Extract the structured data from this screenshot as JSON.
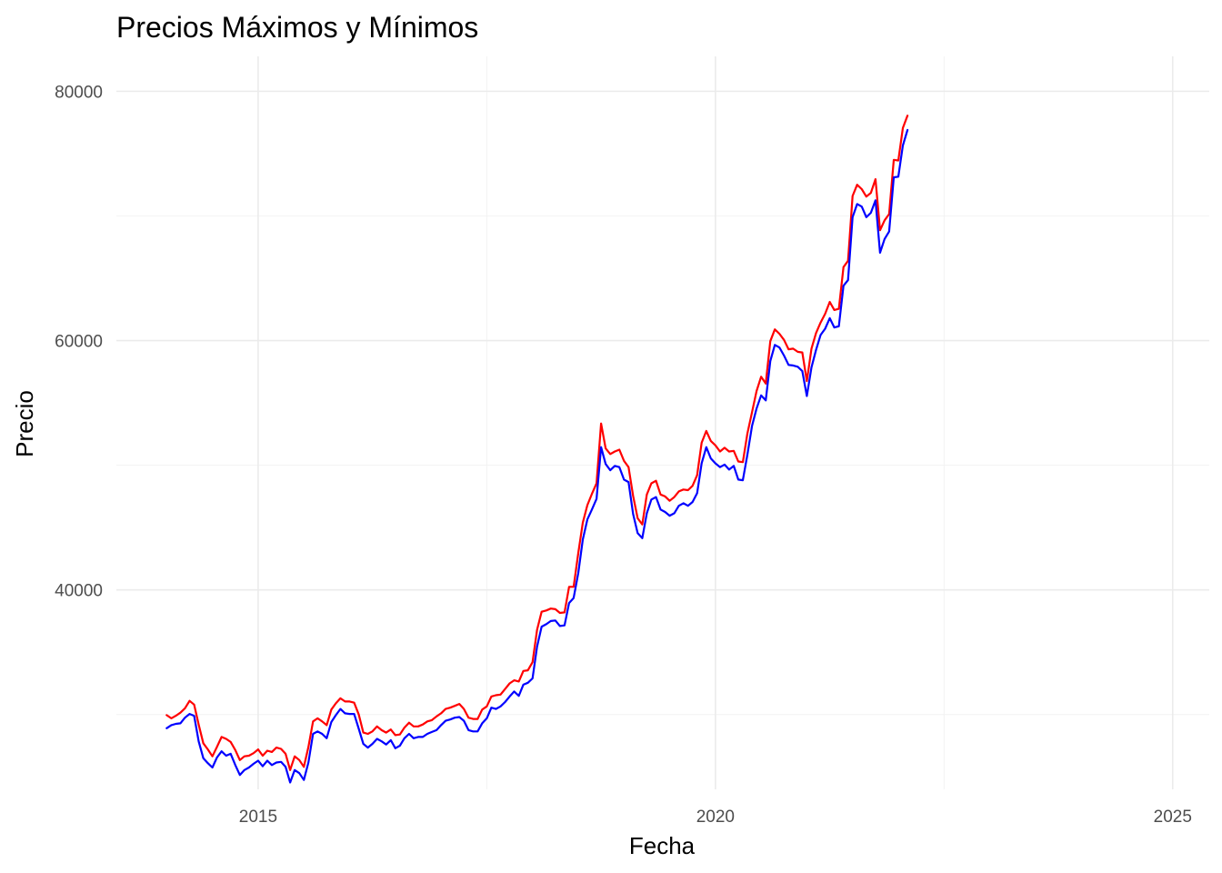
{
  "chart_data": {
    "type": "line",
    "title": "Precios Máximos y Mínimos",
    "xlabel": "Fecha",
    "ylabel": "Precio",
    "x_ticks": [
      {
        "label": "2015",
        "value": 2015
      },
      {
        "label": "2020",
        "value": 2020
      },
      {
        "label": "2025",
        "value": 2025
      }
    ],
    "y_ticks": [
      {
        "label": "40000",
        "value": 40000
      },
      {
        "label": "60000",
        "value": 60000
      },
      {
        "label": "80000",
        "value": 80000
      }
    ],
    "xlim": [
      2013.45,
      2025.4
    ],
    "ylim": [
      24000,
      82800
    ],
    "grid": true,
    "x_step": 0.05,
    "x_start": 2014.0,
    "series": [
      {
        "key": "high",
        "color": "#ff0000",
        "values": [
          29950,
          29700,
          29900,
          30150,
          30500,
          31100,
          30800,
          29200,
          27700,
          27200,
          26650,
          27400,
          28200,
          28050,
          27800,
          27150,
          26350,
          26650,
          26700,
          26900,
          27200,
          26700,
          27100,
          27000,
          27350,
          27250,
          26850,
          25550,
          26650,
          26350,
          25800,
          27400,
          29450,
          29700,
          29450,
          29150,
          30400,
          30900,
          31300,
          31050,
          31050,
          30950,
          30000,
          28550,
          28450,
          28650,
          29050,
          28750,
          28550,
          28800,
          28350,
          28400,
          28950,
          29350,
          29050,
          29050,
          29200,
          29450,
          29550,
          29850,
          30100,
          30450,
          30550,
          30700,
          30850,
          30450,
          29750,
          29650,
          29650,
          30400,
          30650,
          31450,
          31550,
          31600,
          32050,
          32500,
          32750,
          32650,
          33500,
          33550,
          34200,
          36800,
          38250,
          38350,
          38500,
          38450,
          38150,
          38200,
          40250,
          40250,
          42950,
          45400,
          46800,
          47700,
          48550,
          53350,
          51350,
          50900,
          51100,
          51250,
          50350,
          49850,
          47550,
          45750,
          45250,
          47650,
          48550,
          48750,
          47650,
          47500,
          47150,
          47450,
          47900,
          48050,
          48000,
          48350,
          49200,
          51800,
          52750,
          51950,
          51600,
          51100,
          51400,
          51100,
          51150,
          50300,
          50250,
          52550,
          54250,
          55950,
          57100,
          56550,
          59950,
          60900,
          60550,
          60050,
          59300,
          59350,
          59100,
          59050,
          56750,
          59350,
          60600,
          61450,
          62150,
          63100,
          62450,
          62550,
          65900,
          66400,
          71600,
          72500,
          72150,
          71550,
          71850,
          72950,
          68850,
          69650,
          70150,
          74500,
          74450,
          77050,
          78050
        ]
      },
      {
        "key": "low",
        "color": "#0000ff",
        "values": [
          28900,
          29150,
          29250,
          29300,
          29750,
          30050,
          29900,
          27850,
          26500,
          26100,
          25750,
          26550,
          27050,
          26700,
          26850,
          25950,
          25150,
          25550,
          25750,
          26050,
          26300,
          25850,
          26300,
          25950,
          26150,
          26200,
          25800,
          24550,
          25550,
          25300,
          24750,
          26150,
          28450,
          28650,
          28450,
          28100,
          29400,
          29950,
          30450,
          30100,
          30050,
          30050,
          28850,
          27650,
          27350,
          27650,
          28050,
          27850,
          27600,
          27950,
          27300,
          27500,
          28100,
          28450,
          28100,
          28200,
          28200,
          28450,
          28600,
          28750,
          29150,
          29500,
          29600,
          29750,
          29800,
          29500,
          28750,
          28650,
          28650,
          29300,
          29700,
          30550,
          30450,
          30650,
          31000,
          31450,
          31850,
          31500,
          32400,
          32550,
          32900,
          35450,
          37050,
          37250,
          37500,
          37550,
          37100,
          37150,
          38950,
          39350,
          41350,
          44050,
          45650,
          46450,
          47300,
          51450,
          50100,
          49600,
          49950,
          49850,
          48850,
          48650,
          46100,
          44550,
          44150,
          46150,
          47250,
          47450,
          46450,
          46250,
          45950,
          46150,
          46750,
          46950,
          46750,
          47050,
          47750,
          50150,
          51450,
          50550,
          50150,
          49850,
          50050,
          49650,
          49950,
          48850,
          48800,
          50850,
          53150,
          54550,
          55600,
          55200,
          58350,
          59650,
          59450,
          58800,
          58050,
          58000,
          57900,
          57550,
          55550,
          57850,
          59250,
          60450,
          60950,
          61800,
          61050,
          61150,
          64400,
          64850,
          69900,
          70950,
          70750,
          69900,
          70250,
          71250,
          67050,
          68150,
          68750,
          73100,
          73150,
          75650,
          76900
        ]
      }
    ]
  }
}
